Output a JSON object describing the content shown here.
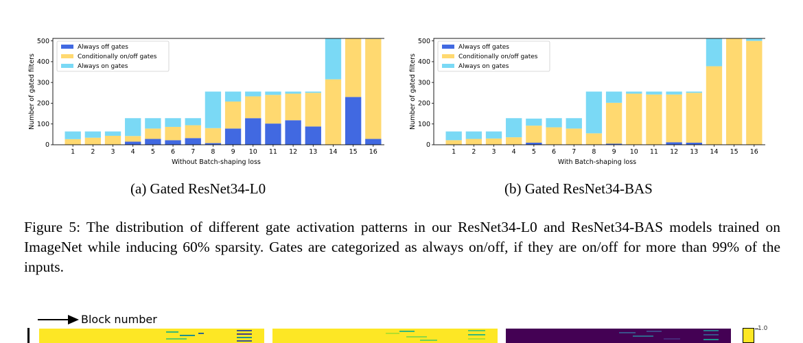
{
  "chart_data": [
    {
      "type": "bar",
      "stacked": true,
      "ylabel": "Number of gated filters",
      "xlabel": "Without Batch-shaping loss",
      "categories": [
        "1",
        "2",
        "3",
        "4",
        "5",
        "6",
        "7",
        "8",
        "9",
        "10",
        "11",
        "12",
        "13",
        "14",
        "15",
        "16"
      ],
      "ylim": [
        0,
        512
      ],
      "yticks": [
        0,
        100,
        200,
        300,
        400,
        500
      ],
      "legend_position": "top-left",
      "series": [
        {
          "name": "Always off gates",
          "color": "#4169e1",
          "values": [
            0,
            0,
            0,
            15,
            28,
            22,
            32,
            8,
            78,
            128,
            102,
            118,
            88,
            0,
            230,
            28
          ]
        },
        {
          "name": "Conditionally on/off gates",
          "color": "#ffd970",
          "values": [
            27,
            34,
            43,
            27,
            50,
            64,
            62,
            72,
            130,
            105,
            138,
            128,
            162,
            315,
            282,
            482
          ]
        },
        {
          "name": "Always on gates",
          "color": "#7ad9f5",
          "values": [
            37,
            30,
            21,
            86,
            50,
            42,
            34,
            176,
            48,
            23,
            16,
            10,
            6,
            197,
            0,
            2
          ]
        }
      ]
    },
    {
      "type": "bar",
      "stacked": true,
      "ylabel": "Number of gated filters",
      "xlabel": "With Batch-shaping loss",
      "categories": [
        "1",
        "2",
        "3",
        "4",
        "5",
        "6",
        "7",
        "8",
        "9",
        "10",
        "11",
        "12",
        "13",
        "14",
        "15",
        "16"
      ],
      "ylim": [
        0,
        512
      ],
      "yticks": [
        0,
        100,
        200,
        300,
        400,
        500
      ],
      "legend_position": "top-left",
      "series": [
        {
          "name": "Always off gates",
          "color": "#4169e1",
          "values": [
            0,
            0,
            0,
            0,
            10,
            0,
            0,
            0,
            5,
            0,
            0,
            12,
            10,
            0,
            0,
            0
          ]
        },
        {
          "name": "Conditionally on/off gates",
          "color": "#ffd970",
          "values": [
            22,
            28,
            30,
            36,
            82,
            84,
            78,
            55,
            197,
            246,
            242,
            230,
            240,
            378,
            512,
            500
          ]
        },
        {
          "name": "Always on gates",
          "color": "#7ad9f5",
          "values": [
            42,
            36,
            34,
            92,
            34,
            44,
            50,
            201,
            54,
            10,
            14,
            14,
            6,
            134,
            0,
            12
          ]
        }
      ]
    }
  ],
  "subcaptions": [
    "(a) Gated ResNet34-L0",
    "(b) Gated ResNet34-BAS"
  ],
  "figure_caption": "Figure 5: The distribution of different gate activation patterns in our ResNet34-L0 and ResNet34-BAS models trained on ImageNet while inducing 60% sparsity. Gates are categorized as always on/off, if they are on/off for more than 99% of the inputs.",
  "heatmap": {
    "block_label": "Block number",
    "colorbar_max": "1.0"
  }
}
